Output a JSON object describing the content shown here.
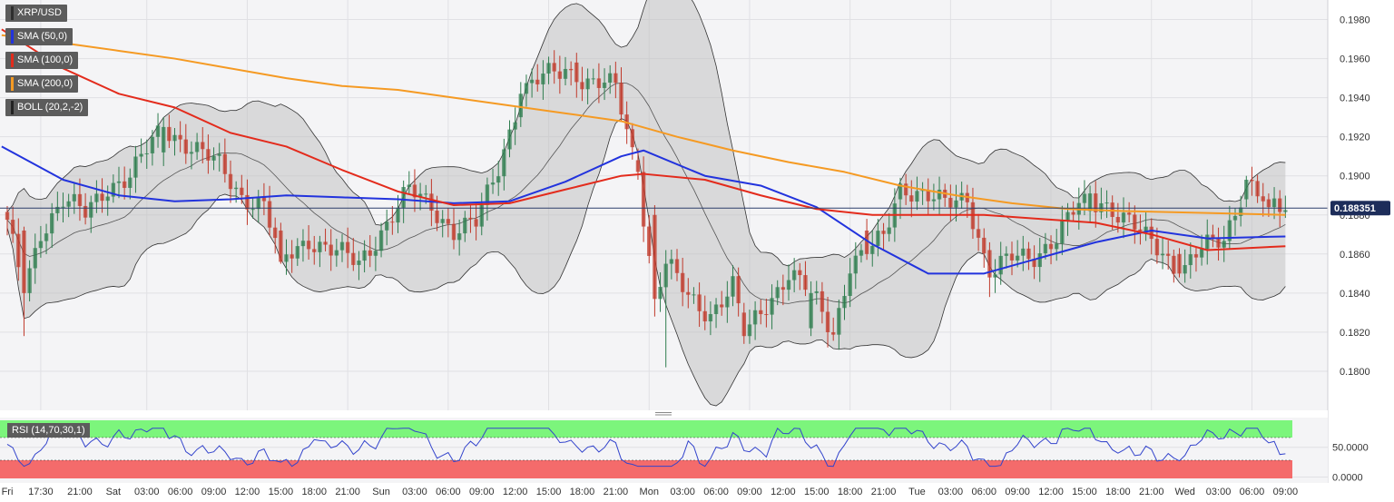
{
  "chart_data": {
    "type": "candlestick",
    "symbol": "XRP/USD",
    "last_price_label": "0.188351",
    "last_price": 0.188351,
    "y_range": [
      0.178,
      0.199
    ],
    "y_ticks": [
      "0.1800",
      "0.1820",
      "0.1840",
      "0.1860",
      "0.1880",
      "0.1900",
      "0.1920",
      "0.1940",
      "0.1960",
      "0.1980"
    ],
    "y_tick_values": [
      0.18,
      0.182,
      0.184,
      0.186,
      0.188,
      0.19,
      0.192,
      0.194,
      0.196,
      0.198
    ],
    "x_ticks": [
      "Fri",
      "17:30",
      "21:00",
      "Sat",
      "03:00",
      "06:00",
      "09:00",
      "12:00",
      "15:00",
      "18:00",
      "21:00",
      "Sun",
      "03:00",
      "06:00",
      "09:00",
      "12:00",
      "15:00",
      "18:00",
      "21:00",
      "Mon",
      "03:00",
      "06:00",
      "09:00",
      "12:00",
      "15:00",
      "18:00",
      "21:00",
      "Tue",
      "03:00",
      "06:00",
      "09:00",
      "12:00",
      "15:00",
      "18:00",
      "21:00",
      "Wed",
      "03:00",
      "06:00",
      "09:00"
    ],
    "x_tick_indices": [
      0,
      6,
      13,
      19,
      25,
      31,
      37,
      43,
      49,
      55,
      61,
      67,
      73,
      79,
      85,
      91,
      97,
      103,
      109,
      115,
      121,
      127,
      133,
      139,
      145,
      151,
      157,
      163,
      169,
      175,
      181,
      187,
      193,
      199,
      205,
      211,
      217,
      223,
      229
    ],
    "grid": true,
    "indicators": [
      {
        "name": "SMA (50,0)",
        "color": "#2233dd"
      },
      {
        "name": "SMA (100,0)",
        "color": "#e32b1c"
      },
      {
        "name": "SMA (200,0)",
        "color": "#f59a23"
      },
      {
        "name": "BOLL (20,2,-2)",
        "color": "#444444"
      }
    ],
    "key_prices": [
      {
        "index": 3,
        "open": 0.1872,
        "close": 0.184,
        "high": 0.1874,
        "low": 0.1818
      },
      {
        "index": 28,
        "open": 0.1912,
        "close": 0.1925,
        "high": 0.193,
        "low": 0.1905
      },
      {
        "index": 49,
        "open": 0.1872,
        "close": 0.1856,
        "high": 0.1876,
        "low": 0.1855
      },
      {
        "index": 92,
        "open": 0.193,
        "close": 0.1942,
        "high": 0.1948,
        "low": 0.1925
      },
      {
        "index": 102,
        "open": 0.1958,
        "close": 0.1948,
        "high": 0.1963,
        "low": 0.194
      },
      {
        "index": 113,
        "open": 0.1908,
        "close": 0.1902,
        "high": 0.1914,
        "low": 0.1898
      },
      {
        "index": 116,
        "open": 0.188,
        "close": 0.1837,
        "high": 0.1885,
        "low": 0.1828
      },
      {
        "index": 118,
        "open": 0.1843,
        "close": 0.1855,
        "high": 0.1862,
        "low": 0.1802
      },
      {
        "index": 132,
        "open": 0.183,
        "close": 0.1818,
        "high": 0.1835,
        "low": 0.1814
      },
      {
        "index": 144,
        "open": 0.1822,
        "close": 0.184,
        "high": 0.1846,
        "low": 0.1818
      },
      {
        "index": 154,
        "open": 0.1872,
        "close": 0.186,
        "high": 0.1878,
        "low": 0.1857
      },
      {
        "index": 160,
        "open": 0.1888,
        "close": 0.1896,
        "high": 0.1899,
        "low": 0.1878
      },
      {
        "index": 176,
        "open": 0.1862,
        "close": 0.1848,
        "high": 0.1866,
        "low": 0.1838
      },
      {
        "index": 194,
        "open": 0.1882,
        "close": 0.1891,
        "high": 0.1895,
        "low": 0.1876
      },
      {
        "index": 210,
        "open": 0.186,
        "close": 0.185,
        "high": 0.1863,
        "low": 0.1848
      },
      {
        "index": 222,
        "open": 0.1888,
        "close": 0.1898,
        "high": 0.19,
        "low": 0.1884
      },
      {
        "index": 226,
        "open": 0.1888,
        "close": 0.1884,
        "high": 0.1891,
        "low": 0.1879
      }
    ],
    "rsi": {
      "label": "RSI (14,70,30,1)",
      "levels": [
        70,
        30
      ],
      "y_ticks": [
        "0.0000",
        "50.0000"
      ],
      "y_tick_values": [
        0,
        50
      ],
      "range": [
        -10,
        100
      ]
    }
  }
}
